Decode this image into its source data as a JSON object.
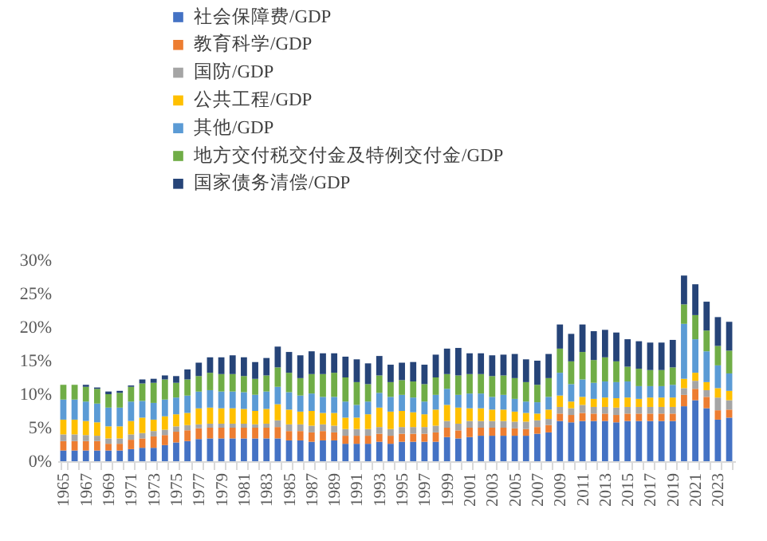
{
  "chart_data": {
    "type": "bar",
    "stacked": true,
    "legend": "top",
    "grid": false,
    "categories": [
      "1965",
      null,
      "1967",
      null,
      "1969",
      null,
      "1971",
      null,
      "1973",
      null,
      "1975",
      null,
      "1977",
      null,
      "1979",
      null,
      "1981",
      null,
      "1983",
      null,
      "1985",
      null,
      "1987",
      null,
      "1989",
      null,
      "1991",
      null,
      "1993",
      null,
      "1995",
      null,
      "1997",
      null,
      "1999",
      null,
      "2001",
      null,
      "2003",
      null,
      "2005",
      null,
      "2007",
      null,
      "2009",
      null,
      "2011",
      null,
      "2013",
      null,
      "2015",
      null,
      "2017",
      null,
      "2019",
      null,
      "2021",
      null,
      "2023",
      null
    ],
    "ylim": [
      0,
      30
    ],
    "yticks": [
      {
        "value": 0,
        "label": "0%"
      },
      {
        "value": 5,
        "label": "5%"
      },
      {
        "value": 10,
        "label": "10%"
      },
      {
        "value": 15,
        "label": "15%"
      },
      {
        "value": 20,
        "label": "20%"
      },
      {
        "value": 25,
        "label": "25%"
      },
      {
        "value": 30,
        "label": "30%"
      }
    ],
    "series": [
      {
        "name": "社会保障费/GDP",
        "color": "#4472c4",
        "values": [
          1.6,
          1.6,
          1.6,
          1.6,
          1.6,
          1.6,
          1.8,
          2.0,
          2.0,
          2.4,
          2.8,
          3.0,
          3.3,
          3.4,
          3.4,
          3.4,
          3.4,
          3.4,
          3.4,
          3.4,
          3.1,
          3.1,
          2.9,
          3.1,
          3.1,
          2.6,
          2.6,
          2.6,
          2.9,
          2.6,
          2.9,
          2.9,
          2.9,
          2.9,
          3.6,
          3.4,
          3.6,
          3.8,
          3.8,
          3.8,
          3.8,
          3.8,
          4.1,
          4.3,
          6.0,
          5.8,
          6.0,
          6.0,
          6.0,
          5.8,
          6.0,
          6.0,
          6.0,
          6.0,
          6.0,
          8.2,
          9.1,
          7.9,
          6.2,
          6.5
        ]
      },
      {
        "name": "教育科学/GDP",
        "color": "#ed7d31",
        "values": [
          1.4,
          1.4,
          1.4,
          1.4,
          1.0,
          1.0,
          1.4,
          1.4,
          1.7,
          1.5,
          1.6,
          1.6,
          1.6,
          1.6,
          1.6,
          1.6,
          1.6,
          1.6,
          1.6,
          1.7,
          1.4,
          1.4,
          1.4,
          1.4,
          1.2,
          1.2,
          1.2,
          1.2,
          1.2,
          1.2,
          1.2,
          1.2,
          1.2,
          1.4,
          1.4,
          1.2,
          1.4,
          1.2,
          1.2,
          1.2,
          1.1,
          1.0,
          1.0,
          1.1,
          1.1,
          1.1,
          1.2,
          1.1,
          1.1,
          1.1,
          1.1,
          1.1,
          1.1,
          1.1,
          1.1,
          1.7,
          1.7,
          1.7,
          1.4,
          1.2
        ]
      },
      {
        "name": "国防/GDP",
        "color": "#a5a5a5",
        "values": [
          1.0,
          1.0,
          0.9,
          0.8,
          0.8,
          0.8,
          0.8,
          0.8,
          0.8,
          0.8,
          0.8,
          0.8,
          0.6,
          0.6,
          0.6,
          0.6,
          0.6,
          0.5,
          0.6,
          1.0,
          1.0,
          1.0,
          1.0,
          1.0,
          1.0,
          1.0,
          1.0,
          1.0,
          1.0,
          1.0,
          1.0,
          1.0,
          1.0,
          1.0,
          1.0,
          1.0,
          1.0,
          1.0,
          1.0,
          1.0,
          1.0,
          1.1,
          1.0,
          0.9,
          1.0,
          1.0,
          1.2,
          1.0,
          1.0,
          1.1,
          1.0,
          1.0,
          1.0,
          1.0,
          1.0,
          1.0,
          1.2,
          1.0,
          1.9,
          1.4
        ]
      },
      {
        "name": "公共工程/GDP",
        "color": "#ffc000",
        "values": [
          2.2,
          2.2,
          2.1,
          2.0,
          1.8,
          1.8,
          2.0,
          2.3,
          1.7,
          2.0,
          1.8,
          1.8,
          2.4,
          2.4,
          2.3,
          2.3,
          2.2,
          2.0,
          2.2,
          2.4,
          2.2,
          1.9,
          2.2,
          1.7,
          1.9,
          1.7,
          1.7,
          2.2,
          2.9,
          2.6,
          2.4,
          2.2,
          1.9,
          2.4,
          2.4,
          2.4,
          1.9,
          1.9,
          1.7,
          1.7,
          1.5,
          1.3,
          1.0,
          1.4,
          1.7,
          1.0,
          1.2,
          1.2,
          1.4,
          1.4,
          1.4,
          1.2,
          1.4,
          1.4,
          1.4,
          1.4,
          1.2,
          1.2,
          1.4,
          1.4
        ]
      },
      {
        "name": "其他/GDP",
        "color": "#5b9bd5",
        "values": [
          3.0,
          3.0,
          2.9,
          2.8,
          2.8,
          2.8,
          2.9,
          2.5,
          2.5,
          2.5,
          2.5,
          2.6,
          2.5,
          2.6,
          2.5,
          2.5,
          2.5,
          2.4,
          2.6,
          2.6,
          2.6,
          2.4,
          2.6,
          2.4,
          2.4,
          2.4,
          1.9,
          1.9,
          2.2,
          2.2,
          2.4,
          2.2,
          1.9,
          2.2,
          2.4,
          1.9,
          2.2,
          2.2,
          1.9,
          2.2,
          1.9,
          1.7,
          1.7,
          1.9,
          3.4,
          2.6,
          2.6,
          2.4,
          2.4,
          2.4,
          2.4,
          1.9,
          1.7,
          1.7,
          1.9,
          8.2,
          5.0,
          4.6,
          3.4,
          2.6
        ]
      },
      {
        "name": "地方交付税交付金及特例交付金/GDP",
        "color": "#70ad47",
        "values": [
          2.2,
          2.2,
          2.2,
          2.2,
          2.0,
          2.2,
          2.2,
          2.6,
          3.0,
          3.0,
          2.2,
          2.4,
          2.3,
          2.6,
          2.6,
          2.6,
          2.4,
          2.4,
          2.4,
          2.9,
          2.9,
          2.6,
          2.9,
          3.4,
          3.6,
          3.6,
          3.4,
          2.6,
          2.6,
          2.2,
          2.2,
          2.4,
          2.6,
          2.6,
          2.2,
          2.9,
          2.9,
          2.9,
          3.1,
          2.9,
          3.1,
          2.9,
          2.6,
          2.8,
          3.6,
          3.4,
          4.1,
          3.4,
          3.6,
          3.1,
          2.2,
          2.6,
          2.4,
          2.4,
          2.6,
          2.9,
          3.6,
          3.1,
          2.9,
          3.4
        ]
      },
      {
        "name": "国家债务清偿/GDP",
        "color": "#264478",
        "values": [
          0,
          0,
          0.3,
          0.2,
          0.4,
          0.3,
          0.2,
          0.6,
          0.6,
          0.6,
          1.0,
          1.5,
          2.0,
          2.3,
          2.5,
          2.8,
          2.8,
          2.5,
          2.6,
          3.1,
          3.1,
          3.4,
          3.4,
          3.1,
          2.9,
          3.1,
          3.4,
          3.1,
          2.9,
          2.6,
          2.6,
          2.9,
          2.9,
          3.4,
          3.8,
          4.1,
          3.1,
          3.1,
          3.1,
          3.1,
          3.6,
          3.4,
          3.6,
          3.6,
          3.6,
          4.1,
          4.1,
          4.3,
          4.1,
          4.3,
          4.1,
          4.1,
          4.1,
          4.1,
          4.1,
          4.3,
          4.6,
          4.3,
          4.3,
          4.3
        ]
      }
    ]
  }
}
